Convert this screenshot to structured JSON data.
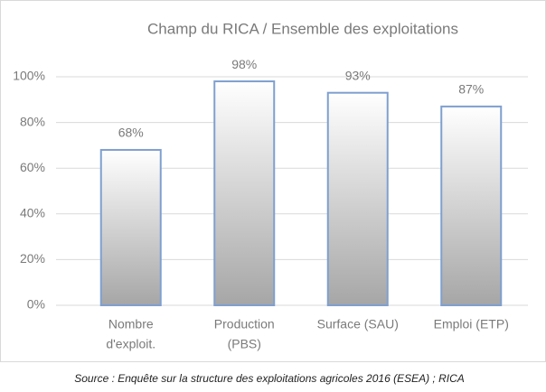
{
  "chart_data": {
    "type": "bar",
    "title": "Champ du RICA / Ensemble des exploitations",
    "categories": [
      [
        "Nombre",
        "d'exploit."
      ],
      [
        "Production",
        "(PBS)"
      ],
      [
        "Surface (SAU)"
      ],
      [
        "Emploi (ETP)"
      ]
    ],
    "values": [
      68,
      98,
      93,
      87
    ],
    "value_labels": [
      "68%",
      "98%",
      "93%",
      "87%"
    ],
    "color": "#7f9fcf",
    "ylim": [
      0,
      100
    ],
    "yticks": [
      {
        "value": 0,
        "label": "0%"
      },
      {
        "value": 20,
        "label": "20%"
      },
      {
        "value": 40,
        "label": "40%"
      },
      {
        "value": 60,
        "label": "60%"
      },
      {
        "value": 80,
        "label": "80%"
      },
      {
        "value": 100,
        "label": "100%"
      }
    ],
    "grid": true,
    "source": "Source : Enquête sur la structure des exploitations agricoles 2016 (ESEA) ; RICA"
  }
}
